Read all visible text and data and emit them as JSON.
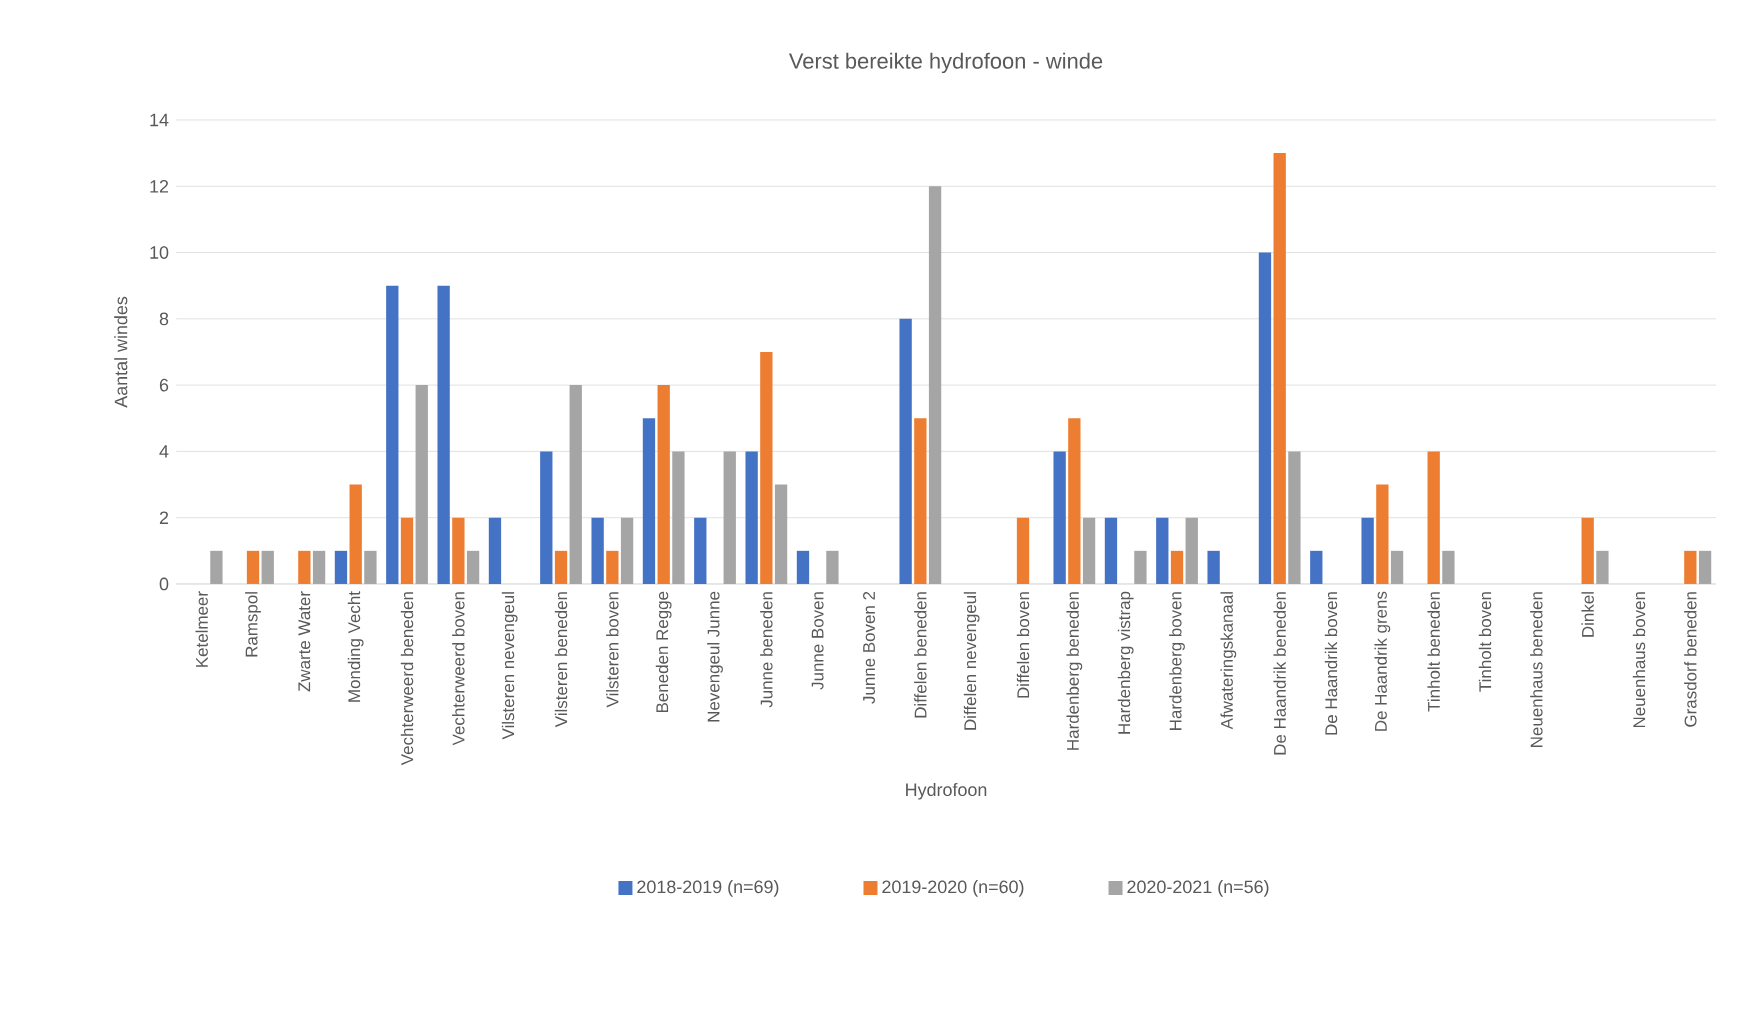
{
  "chart_data": {
    "type": "bar",
    "title": "Verst bereikte hydrofoon - winde",
    "xlabel": "Hydrofoon",
    "ylabel": "Aantal windes",
    "categories": [
      "Ketelmeer",
      "Ramspol",
      "Zwarte Water",
      "Monding Vecht",
      "Vechterweerd beneden",
      "Vechterweerd boven",
      "Vilsteren nevengeul",
      "Vilsteren beneden",
      "Vilsteren boven",
      "Beneden Regge",
      "Nevengeul Junne",
      "Junne beneden",
      "Junne Boven",
      "Junne Boven 2",
      "Diffelen beneden",
      "Diffelen nevengeul",
      "Diffelen boven",
      "Hardenberg beneden",
      "Hardenberg vistrap",
      "Hardenberg boven",
      "Afwateringskanaal",
      "De Haandrik beneden",
      "De Haandrik boven",
      "De Haandrik grens",
      "Tinholt beneden",
      "Tinholt boven",
      "Neuenhaus beneden",
      "Dinkel",
      "Neuenhaus boven",
      "Grasdorf beneden"
    ],
    "series": [
      {
        "name": "2018-2019 (n=69)",
        "color": "#4472c4",
        "values": [
          0,
          0,
          0,
          1,
          9,
          9,
          2,
          4,
          2,
          5,
          2,
          4,
          1,
          0,
          8,
          0,
          0,
          4,
          2,
          2,
          1,
          10,
          1,
          2,
          0,
          0,
          0,
          0,
          0,
          0
        ]
      },
      {
        "name": "2019-2020 (n=60)",
        "color": "#ed7d31",
        "values": [
          0,
          1,
          1,
          3,
          2,
          2,
          0,
          1,
          1,
          6,
          0,
          7,
          0,
          0,
          5,
          0,
          2,
          5,
          0,
          1,
          0,
          13,
          0,
          3,
          4,
          0,
          0,
          2,
          0,
          1
        ]
      },
      {
        "name": "2020-2021 (n=56)",
        "color": "#a5a5a5",
        "values": [
          1,
          1,
          1,
          1,
          6,
          1,
          0,
          6,
          2,
          4,
          4,
          3,
          1,
          0,
          12,
          0,
          0,
          2,
          1,
          2,
          0,
          4,
          0,
          1,
          1,
          0,
          0,
          1,
          0,
          1
        ]
      }
    ],
    "ylim": [
      0,
      14
    ],
    "yticks": [
      0,
      2,
      4,
      6,
      8,
      10,
      12,
      14
    ],
    "grid": "y",
    "legend": "bottom"
  }
}
